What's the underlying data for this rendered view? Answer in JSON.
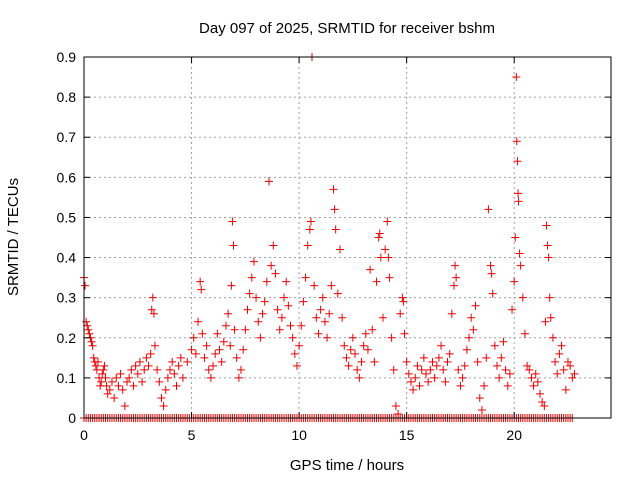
{
  "chart_data": {
    "type": "scatter",
    "title": "Day 097 of 2025, SRMTID for receiver bshm",
    "xlabel": "GPS time / hours",
    "ylabel": "SRMTID / TECUs",
    "xlim": [
      0,
      24.5
    ],
    "ylim": [
      0,
      0.9
    ],
    "xticks": [
      0,
      5,
      10,
      15,
      20
    ],
    "xtick_labels": [
      "0",
      "5",
      "10",
      "15",
      "20"
    ],
    "yticks": [
      0,
      0.1,
      0.2,
      0.3,
      0.4,
      0.5,
      0.6,
      0.7,
      0.8,
      0.9
    ],
    "ytick_labels": [
      "0",
      "0.1",
      "0.2",
      "0.3",
      "0.4",
      "0.5",
      "0.6",
      "0.7",
      "0.8",
      "0.9"
    ],
    "grid": true,
    "marker": "+",
    "color": "#ee0000",
    "series": [
      {
        "name": "SRMTID",
        "points": [
          [
            0.0,
            0.35
          ],
          [
            0.05,
            0.33
          ],
          [
            0.1,
            0.24
          ],
          [
            0.15,
            0.23
          ],
          [
            0.2,
            0.22
          ],
          [
            0.25,
            0.21
          ],
          [
            0.3,
            0.2
          ],
          [
            0.35,
            0.19
          ],
          [
            0.4,
            0.18
          ],
          [
            0.45,
            0.15
          ],
          [
            0.5,
            0.14
          ],
          [
            0.55,
            0.13
          ],
          [
            0.6,
            0.12
          ],
          [
            0.65,
            0.14
          ],
          [
            0.7,
            0.1
          ],
          [
            0.75,
            0.08
          ],
          [
            0.8,
            0.09
          ],
          [
            0.85,
            0.11
          ],
          [
            0.9,
            0.12
          ],
          [
            0.95,
            0.13
          ],
          [
            1.0,
            0.1
          ],
          [
            1.05,
            0.08
          ],
          [
            1.1,
            0.06
          ],
          [
            1.2,
            0.07
          ],
          [
            1.3,
            0.09
          ],
          [
            1.4,
            0.05
          ],
          [
            1.5,
            0.1
          ],
          [
            1.6,
            0.08
          ],
          [
            1.7,
            0.11
          ],
          [
            1.8,
            0.07
          ],
          [
            1.9,
            0.03
          ],
          [
            2.0,
            0.09
          ],
          [
            2.1,
            0.1
          ],
          [
            2.2,
            0.12
          ],
          [
            2.3,
            0.08
          ],
          [
            2.4,
            0.13
          ],
          [
            2.5,
            0.11
          ],
          [
            2.6,
            0.14
          ],
          [
            2.7,
            0.09
          ],
          [
            2.8,
            0.12
          ],
          [
            2.9,
            0.15
          ],
          [
            3.0,
            0.13
          ],
          [
            3.1,
            0.16
          ],
          [
            3.15,
            0.27
          ],
          [
            3.2,
            0.3
          ],
          [
            3.25,
            0.26
          ],
          [
            3.3,
            0.18
          ],
          [
            3.4,
            0.12
          ],
          [
            3.5,
            0.09
          ],
          [
            3.6,
            0.05
          ],
          [
            3.7,
            0.03
          ],
          [
            3.8,
            0.07
          ],
          [
            3.9,
            0.1
          ],
          [
            4.0,
            0.12
          ],
          [
            4.1,
            0.14
          ],
          [
            4.2,
            0.11
          ],
          [
            4.3,
            0.08
          ],
          [
            4.4,
            0.13
          ],
          [
            4.5,
            0.15
          ],
          [
            4.6,
            0.1
          ],
          [
            4.8,
            0.14
          ],
          [
            5.0,
            0.17
          ],
          [
            5.1,
            0.2
          ],
          [
            5.2,
            0.16
          ],
          [
            5.3,
            0.24
          ],
          [
            5.4,
            0.34
          ],
          [
            5.45,
            0.32
          ],
          [
            5.5,
            0.21
          ],
          [
            5.6,
            0.15
          ],
          [
            5.7,
            0.18
          ],
          [
            5.8,
            0.12
          ],
          [
            5.9,
            0.1
          ],
          [
            6.0,
            0.13
          ],
          [
            6.1,
            0.16
          ],
          [
            6.2,
            0.21
          ],
          [
            6.3,
            0.17
          ],
          [
            6.4,
            0.14
          ],
          [
            6.5,
            0.19
          ],
          [
            6.6,
            0.23
          ],
          [
            6.7,
            0.26
          ],
          [
            6.8,
            0.18
          ],
          [
            6.85,
            0.33
          ],
          [
            6.9,
            0.49
          ],
          [
            6.95,
            0.43
          ],
          [
            7.0,
            0.22
          ],
          [
            7.1,
            0.15
          ],
          [
            7.2,
            0.1
          ],
          [
            7.3,
            0.12
          ],
          [
            7.4,
            0.17
          ],
          [
            7.5,
            0.22
          ],
          [
            7.6,
            0.27
          ],
          [
            7.7,
            0.31
          ],
          [
            7.8,
            0.35
          ],
          [
            7.9,
            0.39
          ],
          [
            8.0,
            0.3
          ],
          [
            8.1,
            0.24
          ],
          [
            8.2,
            0.2
          ],
          [
            8.3,
            0.26
          ],
          [
            8.4,
            0.29
          ],
          [
            8.5,
            0.34
          ],
          [
            8.6,
            0.59
          ],
          [
            8.7,
            0.38
          ],
          [
            8.8,
            0.43
          ],
          [
            8.9,
            0.36
          ],
          [
            9.0,
            0.27
          ],
          [
            9.1,
            0.22
          ],
          [
            9.2,
            0.25
          ],
          [
            9.3,
            0.3
          ],
          [
            9.4,
            0.34
          ],
          [
            9.5,
            0.28
          ],
          [
            9.6,
            0.23
          ],
          [
            9.7,
            0.2
          ],
          [
            9.8,
            0.16
          ],
          [
            9.9,
            0.13
          ],
          [
            10.0,
            0.18
          ],
          [
            10.1,
            0.23
          ],
          [
            10.2,
            0.29
          ],
          [
            10.3,
            0.35
          ],
          [
            10.4,
            0.43
          ],
          [
            10.5,
            0.47
          ],
          [
            10.55,
            0.49
          ],
          [
            10.6,
            0.9
          ],
          [
            10.7,
            0.33
          ],
          [
            10.8,
            0.25
          ],
          [
            10.9,
            0.21
          ],
          [
            11.0,
            0.27
          ],
          [
            11.1,
            0.3
          ],
          [
            11.2,
            0.24
          ],
          [
            11.3,
            0.2
          ],
          [
            11.4,
            0.26
          ],
          [
            11.5,
            0.33
          ],
          [
            11.6,
            0.57
          ],
          [
            11.65,
            0.52
          ],
          [
            11.7,
            0.47
          ],
          [
            11.8,
            0.31
          ],
          [
            11.9,
            0.42
          ],
          [
            12.0,
            0.25
          ],
          [
            12.1,
            0.18
          ],
          [
            12.2,
            0.15
          ],
          [
            12.3,
            0.13
          ],
          [
            12.4,
            0.17
          ],
          [
            12.5,
            0.2
          ],
          [
            12.6,
            0.16
          ],
          [
            12.7,
            0.12
          ],
          [
            12.8,
            0.1
          ],
          [
            12.9,
            0.14
          ],
          [
            13.0,
            0.18
          ],
          [
            13.1,
            0.21
          ],
          [
            13.2,
            0.17
          ],
          [
            13.3,
            0.37
          ],
          [
            13.4,
            0.22
          ],
          [
            13.5,
            0.14
          ],
          [
            13.6,
            0.34
          ],
          [
            13.7,
            0.45
          ],
          [
            13.75,
            0.46
          ],
          [
            13.8,
            0.4
          ],
          [
            13.9,
            0.25
          ],
          [
            14.0,
            0.42
          ],
          [
            14.1,
            0.49
          ],
          [
            14.15,
            0.4
          ],
          [
            14.2,
            0.35
          ],
          [
            14.3,
            0.2
          ],
          [
            14.4,
            0.12
          ],
          [
            14.5,
            0.03
          ],
          [
            14.6,
            0.01
          ],
          [
            14.7,
            0.26
          ],
          [
            14.8,
            0.3
          ],
          [
            14.85,
            0.29
          ],
          [
            14.9,
            0.21
          ],
          [
            15.0,
            0.14
          ],
          [
            15.1,
            0.11
          ],
          [
            15.2,
            0.09
          ],
          [
            15.3,
            0.07
          ],
          [
            15.4,
            0.1
          ],
          [
            15.5,
            0.13
          ],
          [
            15.6,
            0.08
          ],
          [
            15.7,
            0.12
          ],
          [
            15.8,
            0.15
          ],
          [
            15.9,
            0.11
          ],
          [
            16.0,
            0.09
          ],
          [
            16.1,
            0.12
          ],
          [
            16.2,
            0.14
          ],
          [
            16.3,
            0.1
          ],
          [
            16.4,
            0.13
          ],
          [
            16.5,
            0.15
          ],
          [
            16.6,
            0.18
          ],
          [
            16.7,
            0.12
          ],
          [
            16.8,
            0.09
          ],
          [
            16.9,
            0.14
          ],
          [
            17.0,
            0.16
          ],
          [
            17.1,
            0.26
          ],
          [
            17.2,
            0.33
          ],
          [
            17.25,
            0.38
          ],
          [
            17.3,
            0.35
          ],
          [
            17.4,
            0.12
          ],
          [
            17.5,
            0.08
          ],
          [
            17.6,
            0.1
          ],
          [
            17.7,
            0.13
          ],
          [
            17.8,
            0.17
          ],
          [
            17.9,
            0.2
          ],
          [
            18.0,
            0.25
          ],
          [
            18.1,
            0.22
          ],
          [
            18.2,
            0.28
          ],
          [
            18.3,
            0.14
          ],
          [
            18.4,
            0.05
          ],
          [
            18.5,
            0.02
          ],
          [
            18.6,
            0.08
          ],
          [
            18.7,
            0.15
          ],
          [
            18.8,
            0.52
          ],
          [
            18.9,
            0.38
          ],
          [
            18.95,
            0.36
          ],
          [
            19.0,
            0.31
          ],
          [
            19.1,
            0.18
          ],
          [
            19.2,
            0.13
          ],
          [
            19.3,
            0.1
          ],
          [
            19.4,
            0.15
          ],
          [
            19.5,
            0.19
          ],
          [
            19.6,
            0.12
          ],
          [
            19.7,
            0.08
          ],
          [
            19.8,
            0.11
          ],
          [
            19.9,
            0.27
          ],
          [
            20.0,
            0.34
          ],
          [
            20.05,
            0.45
          ],
          [
            20.1,
            0.85
          ],
          [
            20.12,
            0.69
          ],
          [
            20.15,
            0.64
          ],
          [
            20.18,
            0.56
          ],
          [
            20.2,
            0.54
          ],
          [
            20.25,
            0.41
          ],
          [
            20.3,
            0.38
          ],
          [
            20.4,
            0.3
          ],
          [
            20.5,
            0.21
          ],
          [
            20.6,
            0.13
          ],
          [
            20.7,
            0.12
          ],
          [
            20.8,
            0.1
          ],
          [
            20.9,
            0.08
          ],
          [
            21.0,
            0.11
          ],
          [
            21.1,
            0.09
          ],
          [
            21.2,
            0.06
          ],
          [
            21.3,
            0.04
          ],
          [
            21.4,
            0.03
          ],
          [
            21.45,
            0.24
          ],
          [
            21.5,
            0.48
          ],
          [
            21.55,
            0.43
          ],
          [
            21.6,
            0.4
          ],
          [
            21.65,
            0.3
          ],
          [
            21.7,
            0.25
          ],
          [
            21.8,
            0.2
          ],
          [
            21.9,
            0.14
          ],
          [
            22.0,
            0.11
          ],
          [
            22.1,
            0.16
          ],
          [
            22.2,
            0.18
          ],
          [
            22.3,
            0.12
          ],
          [
            22.4,
            0.07
          ],
          [
            22.5,
            0.14
          ],
          [
            22.6,
            0.13
          ],
          [
            22.7,
            0.1
          ],
          [
            22.8,
            0.11
          ]
        ],
        "zero_band": [
          0.0,
          22.8
        ]
      }
    ]
  }
}
